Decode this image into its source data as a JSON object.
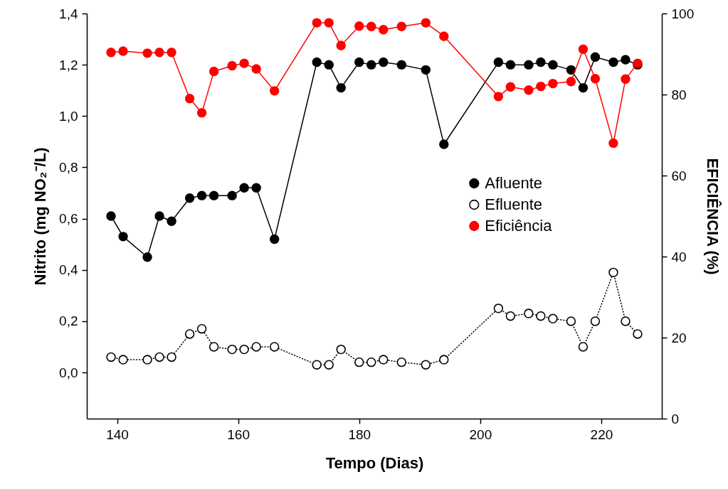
{
  "chart_data": {
    "type": "line",
    "xlabel": "Tempo (Dias)",
    "ylabel": "Nitrito (mg NO₂⁻/L)",
    "y2label": "EFICIÊNCIA (%)",
    "x": [
      139,
      141,
      145,
      147,
      149,
      152,
      154,
      156,
      159,
      161,
      163,
      166,
      173,
      175,
      177,
      180,
      182,
      184,
      187,
      191,
      194,
      203,
      205,
      208,
      210,
      212,
      215,
      217,
      219,
      222,
      224,
      226
    ],
    "xlim": [
      135,
      230
    ],
    "xticks": [
      140,
      160,
      180,
      200,
      220
    ],
    "ylim": [
      -0.18,
      1.4
    ],
    "yticks": [
      {
        "value": 0,
        "label": "0,0"
      },
      {
        "value": 0.2,
        "label": "0,2"
      },
      {
        "value": 0.4,
        "label": "0,4"
      },
      {
        "value": 0.6,
        "label": "0,6"
      },
      {
        "value": 0.8,
        "label": "0,8"
      },
      {
        "value": 1,
        "label": "1,0"
      },
      {
        "value": 1.2,
        "label": "1,2"
      },
      {
        "value": 1.4,
        "label": "1,4"
      }
    ],
    "y2lim": [
      0,
      100
    ],
    "y2ticks": [
      0,
      20,
      40,
      60,
      80,
      100
    ],
    "legend": "right",
    "marker": "circle",
    "series": [
      {
        "name": "Afluente",
        "color": "#000000",
        "line_style": "solid",
        "values": [
          0.61,
          0.53,
          0.45,
          0.61,
          0.59,
          0.68,
          0.69,
          0.69,
          0.69,
          0.72,
          0.72,
          0.52,
          1.21,
          1.2,
          1.11,
          1.21,
          1.2,
          1.21,
          1.2,
          1.18,
          0.89,
          1.21,
          1.2,
          1.2,
          1.21,
          1.2,
          1.18,
          1.11,
          1.23,
          1.21,
          1.22,
          1.2
        ]
      },
      {
        "name": "Efluente",
        "color": "#000000",
        "line_style": "dotted",
        "values": [
          0.06,
          0.05,
          0.05,
          0.06,
          0.06,
          0.15,
          0.17,
          0.1,
          0.09,
          0.09,
          0.1,
          0.1,
          0.03,
          0.03,
          0.09,
          0.04,
          0.04,
          0.05,
          0.04,
          0.03,
          0.05,
          0.25,
          0.22,
          0.23,
          0.22,
          0.21,
          0.2,
          0.1,
          0.2,
          0.39,
          0.2,
          0.15
        ]
      },
      {
        "name": "Eficiência",
        "color": "#ff0000",
        "line_style": "solid",
        "axis": "y2",
        "values": [
          90.4,
          90.7,
          90.2,
          90.4,
          90.4,
          79,
          75.5,
          85.7,
          87.1,
          87.7,
          86.3,
          80.9,
          97.7,
          97.7,
          92.1,
          96.9,
          96.8,
          96,
          96.8,
          97.7,
          94.4,
          79.5,
          81.9,
          81.1,
          82,
          82.7,
          83.2,
          91.2,
          83.9,
          68,
          83.8,
          87.7
        ]
      }
    ]
  }
}
